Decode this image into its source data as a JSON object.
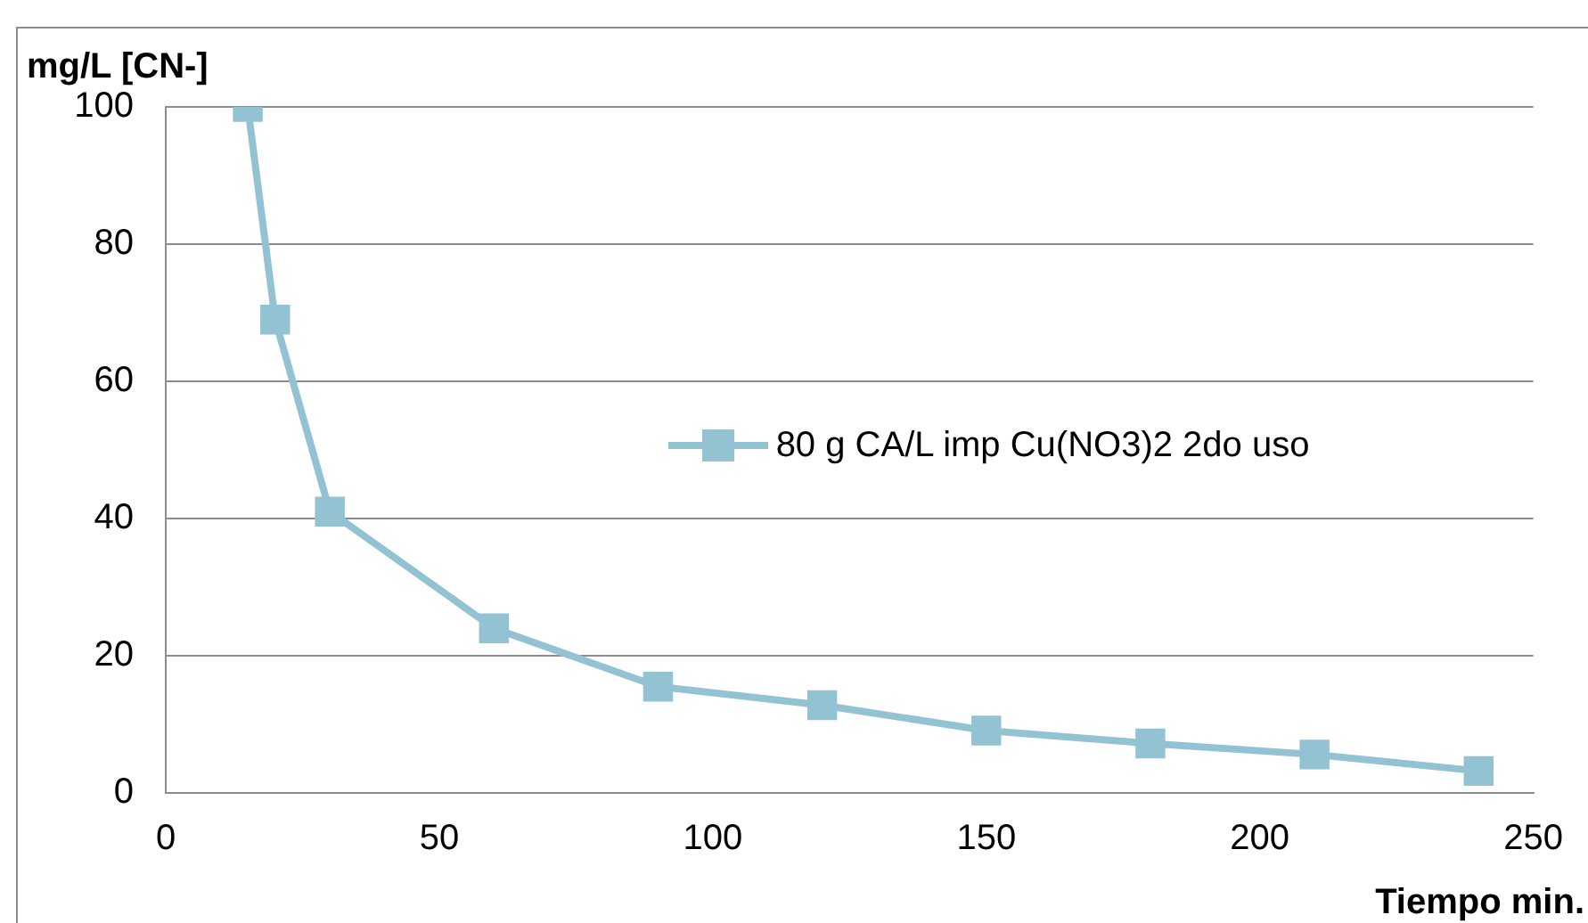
{
  "chart_data": {
    "type": "line",
    "xlabel": "Tiempo min.",
    "ylabel": "mg/L [CN-]",
    "x": [
      15,
      20,
      30,
      60,
      90,
      120,
      150,
      180,
      210,
      240
    ],
    "series": [
      {
        "name": "80 g CA/L imp Cu(NO3)2 2do uso",
        "color": "#93c3d3",
        "values": [
          100,
          69,
          41,
          24,
          15.5,
          12.8,
          9.1,
          7.2,
          5.6,
          3.2
        ]
      }
    ],
    "xlim": [
      0,
      250
    ],
    "xticks": [
      0,
      50,
      100,
      150,
      200,
      250
    ],
    "ylim": [
      0,
      100
    ],
    "yticks": [
      0,
      20,
      40,
      60,
      80,
      100
    ],
    "grid": "y",
    "legend": "right",
    "marker": "square",
    "line_style": "solid"
  }
}
